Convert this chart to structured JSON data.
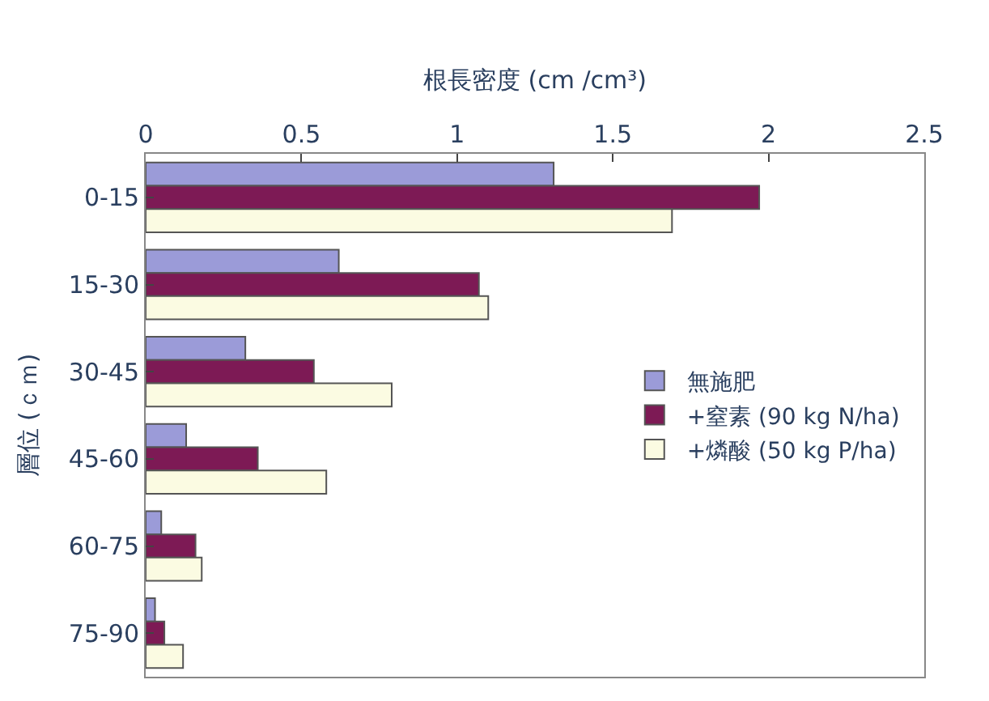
{
  "chart_data": {
    "type": "bar",
    "orientation": "horizontal",
    "xlabel": "根長密度 (cm /cm³)",
    "ylabel": "層位 (ｃｍ)",
    "categories": [
      "0-15",
      "15-30",
      "30-45",
      "45-60",
      "60-75",
      "75-90"
    ],
    "series": [
      {
        "name": "無施肥",
        "color": "#9b9bd8",
        "values": [
          1.31,
          0.62,
          0.32,
          0.13,
          0.05,
          0.03
        ]
      },
      {
        "name": "+窒素 (90 kg N/ha)",
        "color": "#7d1a55",
        "values": [
          1.97,
          1.07,
          0.54,
          0.36,
          0.16,
          0.06
        ]
      },
      {
        "name": "+燐酸 (50 kg P/ha)",
        "color": "#fbfbe2",
        "values": [
          1.69,
          1.1,
          0.79,
          0.58,
          0.18,
          0.12
        ]
      }
    ],
    "xlim": [
      0,
      2.5
    ],
    "xticks": [
      0,
      0.5,
      1,
      1.5,
      2,
      2.5
    ],
    "legend": "right"
  }
}
